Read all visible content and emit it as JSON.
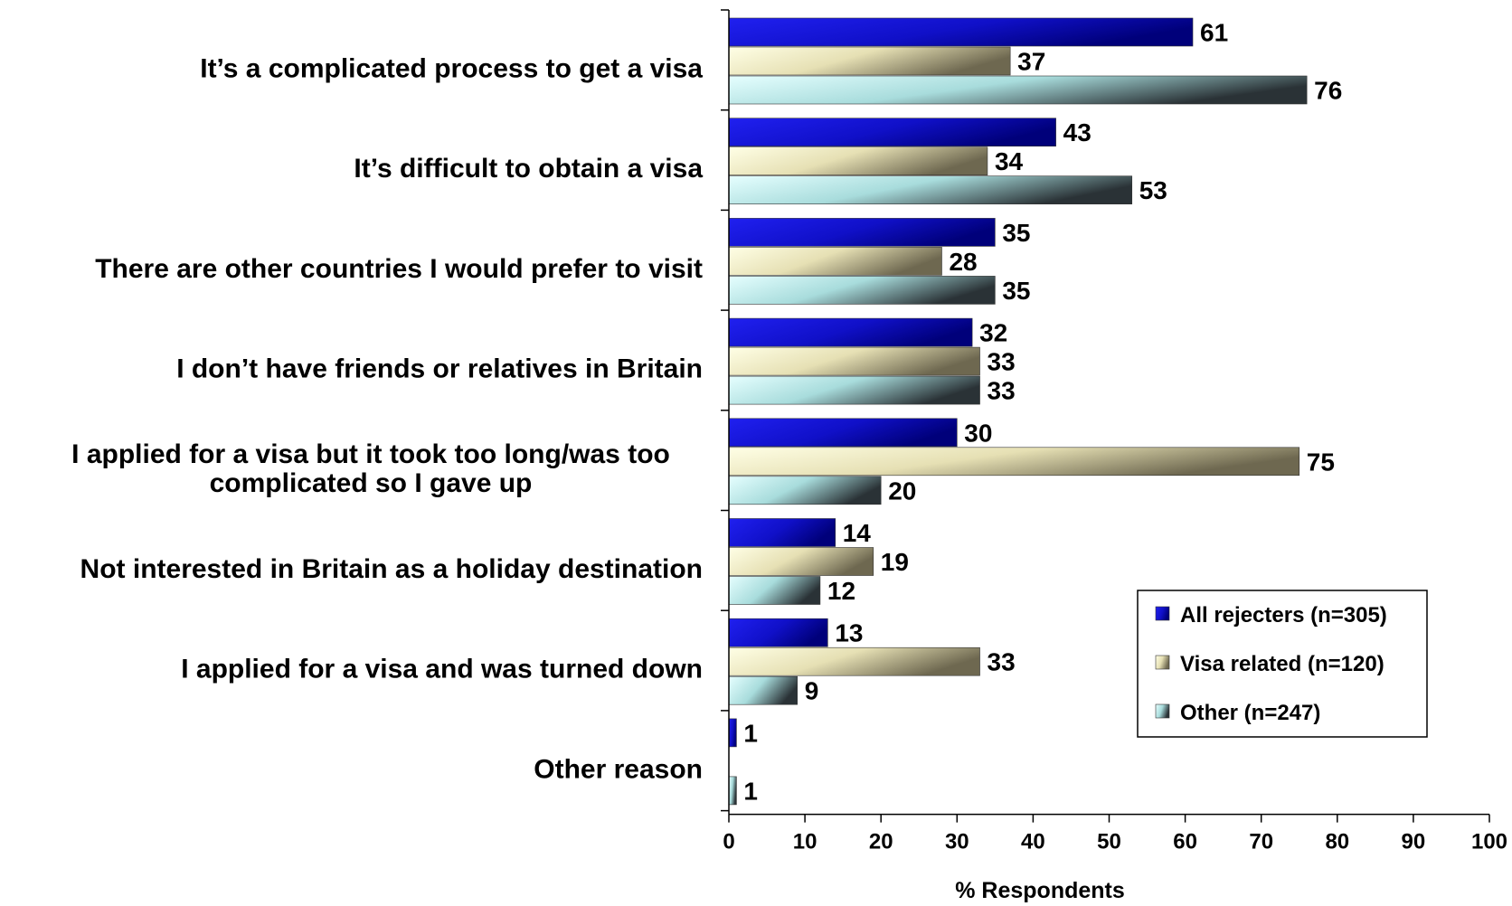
{
  "chart_data": {
    "type": "bar",
    "orientation": "horizontal",
    "categories": [
      [
        "It’s a complicated process to get a visa"
      ],
      [
        "It’s difficult to obtain a visa"
      ],
      [
        "There are other countries I would prefer to visit"
      ],
      [
        "I don’t have friends or relatives in Britain"
      ],
      [
        "I applied for a visa but it took too long/was too",
        "complicated so I gave up"
      ],
      [
        "Not interested in Britain as a holiday destination"
      ],
      [
        "I applied for a visa and was turned down"
      ],
      [
        "Other reason"
      ]
    ],
    "series": [
      {
        "name": "All rejecters (n=305)",
        "values": [
          61,
          43,
          35,
          32,
          30,
          14,
          13,
          1
        ],
        "color": "#1a1ad6"
      },
      {
        "name": "Visa related (n=120)",
        "values": [
          37,
          34,
          28,
          33,
          75,
          19,
          33,
          null
        ],
        "color": "#c8c090"
      },
      {
        "name": "Other (n=247)",
        "values": [
          76,
          53,
          35,
          33,
          20,
          12,
          9,
          1
        ],
        "color": "#8fc8cc"
      }
    ],
    "xlabel": "% Respondents",
    "xlim": [
      0,
      100
    ],
    "xticks": [
      0,
      10,
      20,
      30,
      40,
      50,
      60,
      70,
      80,
      90,
      100
    ],
    "grid": false,
    "legend_position": "bottom-right"
  }
}
